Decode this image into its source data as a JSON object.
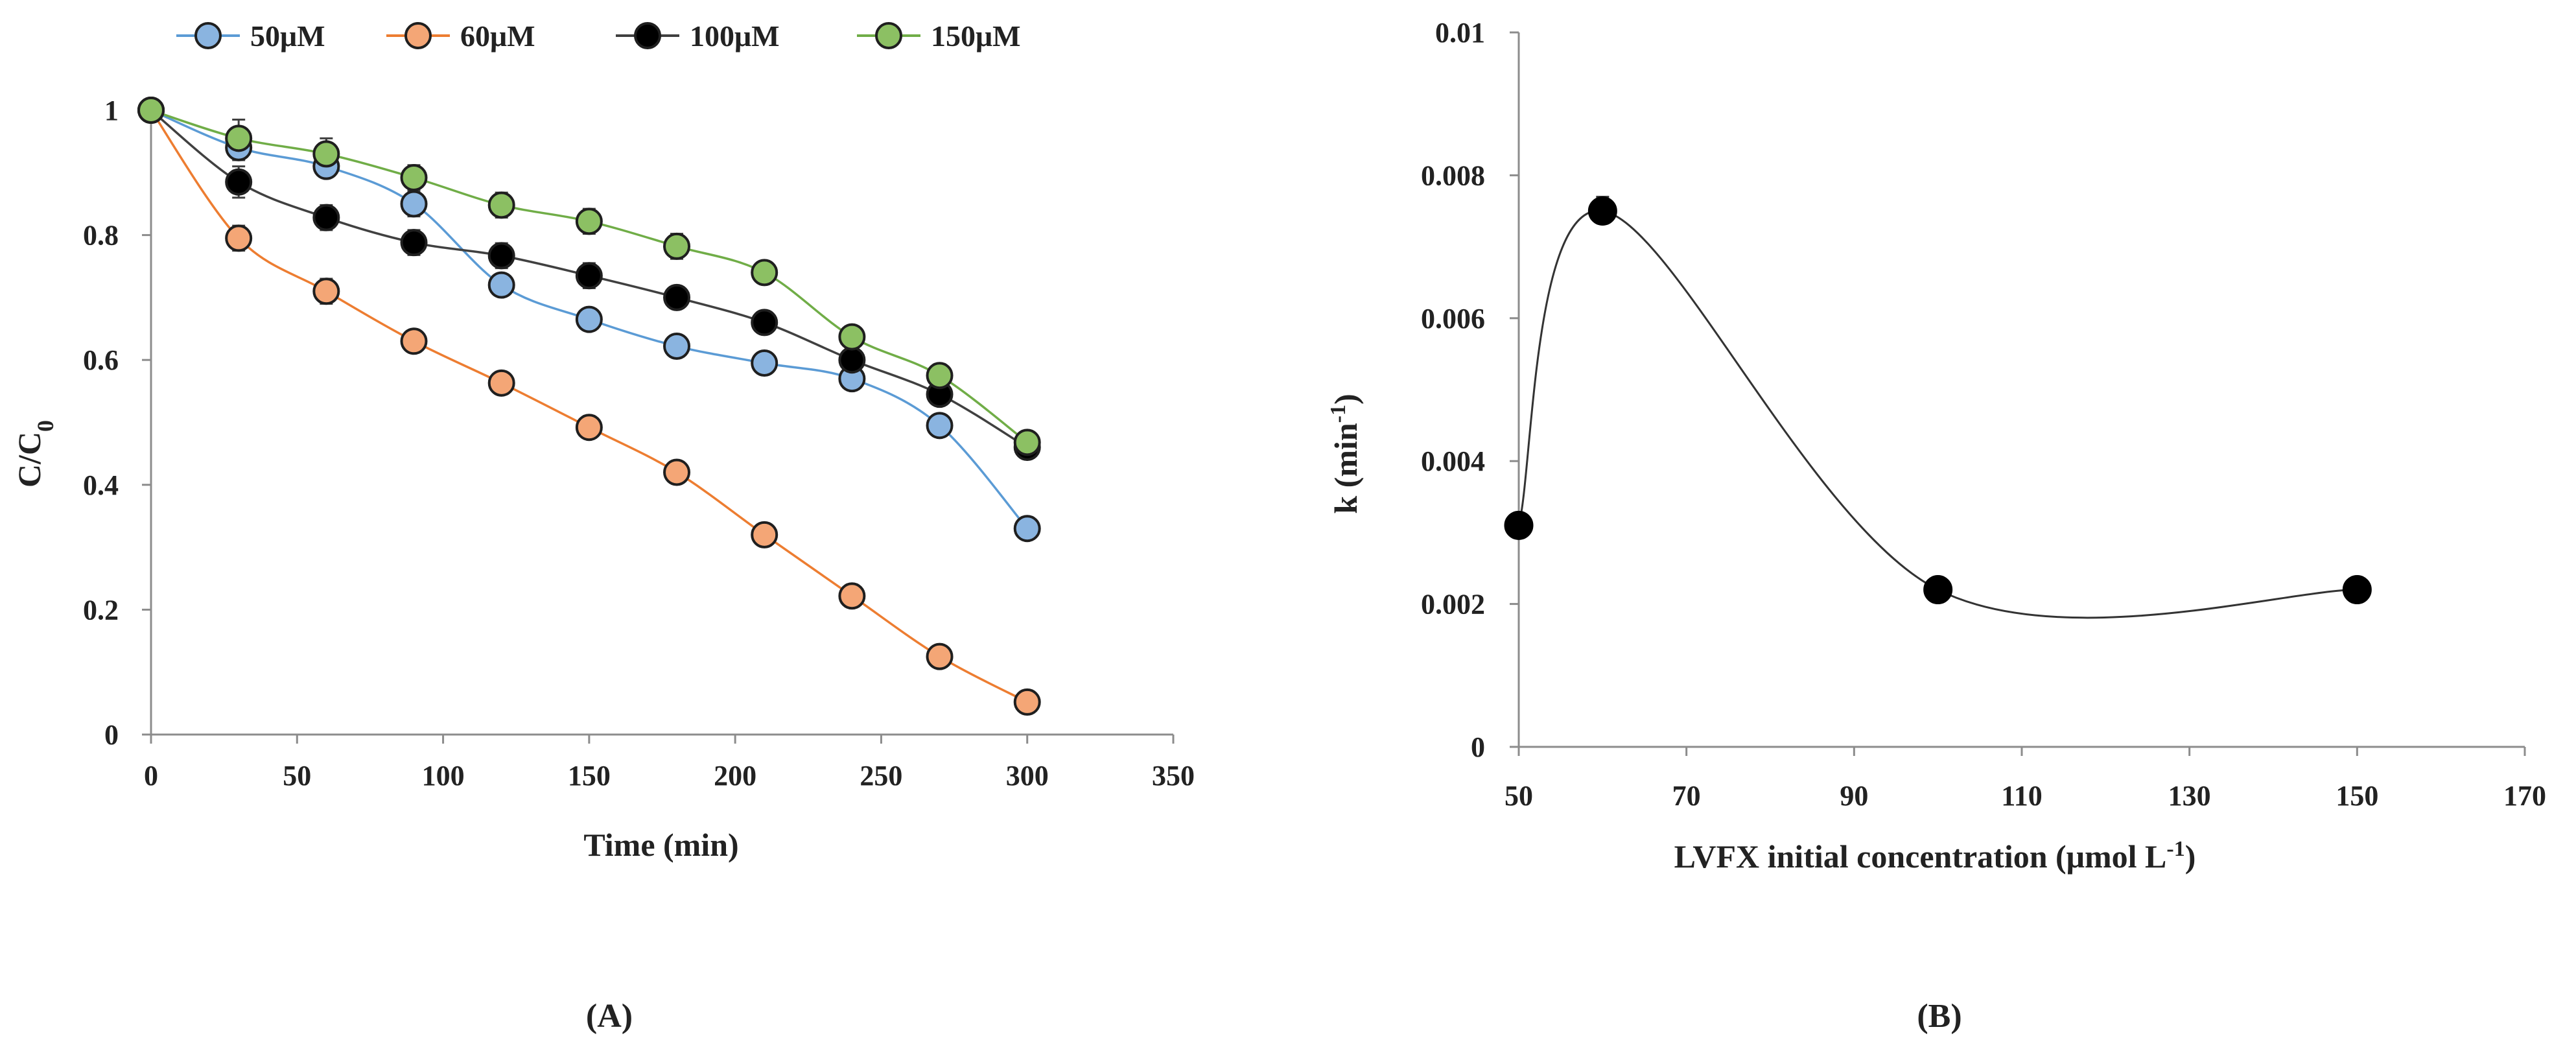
{
  "chart_data": [
    {
      "panel": "A",
      "panel_label": "A",
      "type": "line",
      "title": "",
      "xlabel": "Time (min)",
      "ylabel": "C/C",
      "ylabel_sub": "0",
      "xlim": [
        0,
        350
      ],
      "ylim": [
        0,
        1
      ],
      "xticks": [
        0,
        50,
        100,
        150,
        200,
        250,
        300,
        350
      ],
      "yticks": [
        0,
        0.2,
        0.4,
        0.6,
        0.8,
        1
      ],
      "ytick_labels": [
        "0",
        "0.2",
        "0.4",
        "0.6",
        "0.8",
        "1"
      ],
      "grid": false,
      "legend_position": "top",
      "x": [
        0,
        30,
        60,
        90,
        120,
        150,
        180,
        210,
        240,
        270,
        300
      ],
      "series": [
        {
          "name": "50μM",
          "color": "#5b9bd5",
          "marker": "#8ab4e0",
          "values": [
            1.0,
            0.94,
            0.91,
            0.85,
            0.72,
            0.665,
            0.622,
            0.595,
            0.57,
            0.495,
            0.33
          ],
          "errors": [
            0,
            0.02,
            0.015,
            0.02,
            0.015,
            0.015,
            0.01,
            0.01,
            0.015,
            0.015,
            0.01
          ]
        },
        {
          "name": "60μM",
          "color": "#ed7d31",
          "marker": "#f4a676",
          "values": [
            1.0,
            0.795,
            0.71,
            0.63,
            0.563,
            0.492,
            0.42,
            0.32,
            0.222,
            0.125,
            0.052
          ],
          "errors": [
            0,
            0.02,
            0.02,
            0.015,
            0.01,
            0.01,
            0.01,
            0.01,
            0.01,
            0.01,
            0.01
          ]
        },
        {
          "name": "100μM",
          "color": "#404040",
          "marker": "#000000",
          "values": [
            1.0,
            0.885,
            0.828,
            0.788,
            0.767,
            0.735,
            0.7,
            0.66,
            0.6,
            0.545,
            0.46
          ],
          "errors": [
            0,
            0.025,
            0.02,
            0.02,
            0.02,
            0.02,
            0.015,
            0.015,
            0.015,
            0.015,
            0.01
          ]
        },
        {
          "name": "150μM",
          "color": "#70ad47",
          "marker": "#8cc063",
          "values": [
            1.0,
            0.955,
            0.93,
            0.892,
            0.848,
            0.822,
            0.782,
            0.74,
            0.637,
            0.575,
            0.468
          ],
          "errors": [
            0,
            0.03,
            0.025,
            0.02,
            0.02,
            0.02,
            0.02,
            0.015,
            0.015,
            0.015,
            0.01
          ]
        }
      ]
    },
    {
      "panel": "B",
      "panel_label": "B",
      "type": "scatter",
      "title": "",
      "xlabel": "LVFX initial concentration (μmol L",
      "xlabel_sup": "-1",
      "xlabel_end": ")",
      "ylabel": "k (min",
      "ylabel_sup": "-1",
      "ylabel_end": ")",
      "xlim": [
        50,
        170
      ],
      "ylim": [
        0,
        0.01
      ],
      "xticks": [
        50,
        70,
        90,
        110,
        130,
        150,
        170
      ],
      "yticks": [
        0,
        0.002,
        0.004,
        0.006,
        0.008,
        0.01
      ],
      "ytick_labels": [
        "0",
        "0.002",
        "0.004",
        "0.006",
        "0.008",
        "0.01"
      ],
      "grid": false,
      "smooth_line": true,
      "x": [
        50,
        60,
        100,
        150
      ],
      "values": [
        0.0031,
        0.0075,
        0.0022,
        0.0022
      ],
      "errors": [
        0,
        0.0002,
        0,
        0
      ],
      "marker_color": "#000000",
      "line_color": "#333333"
    }
  ]
}
